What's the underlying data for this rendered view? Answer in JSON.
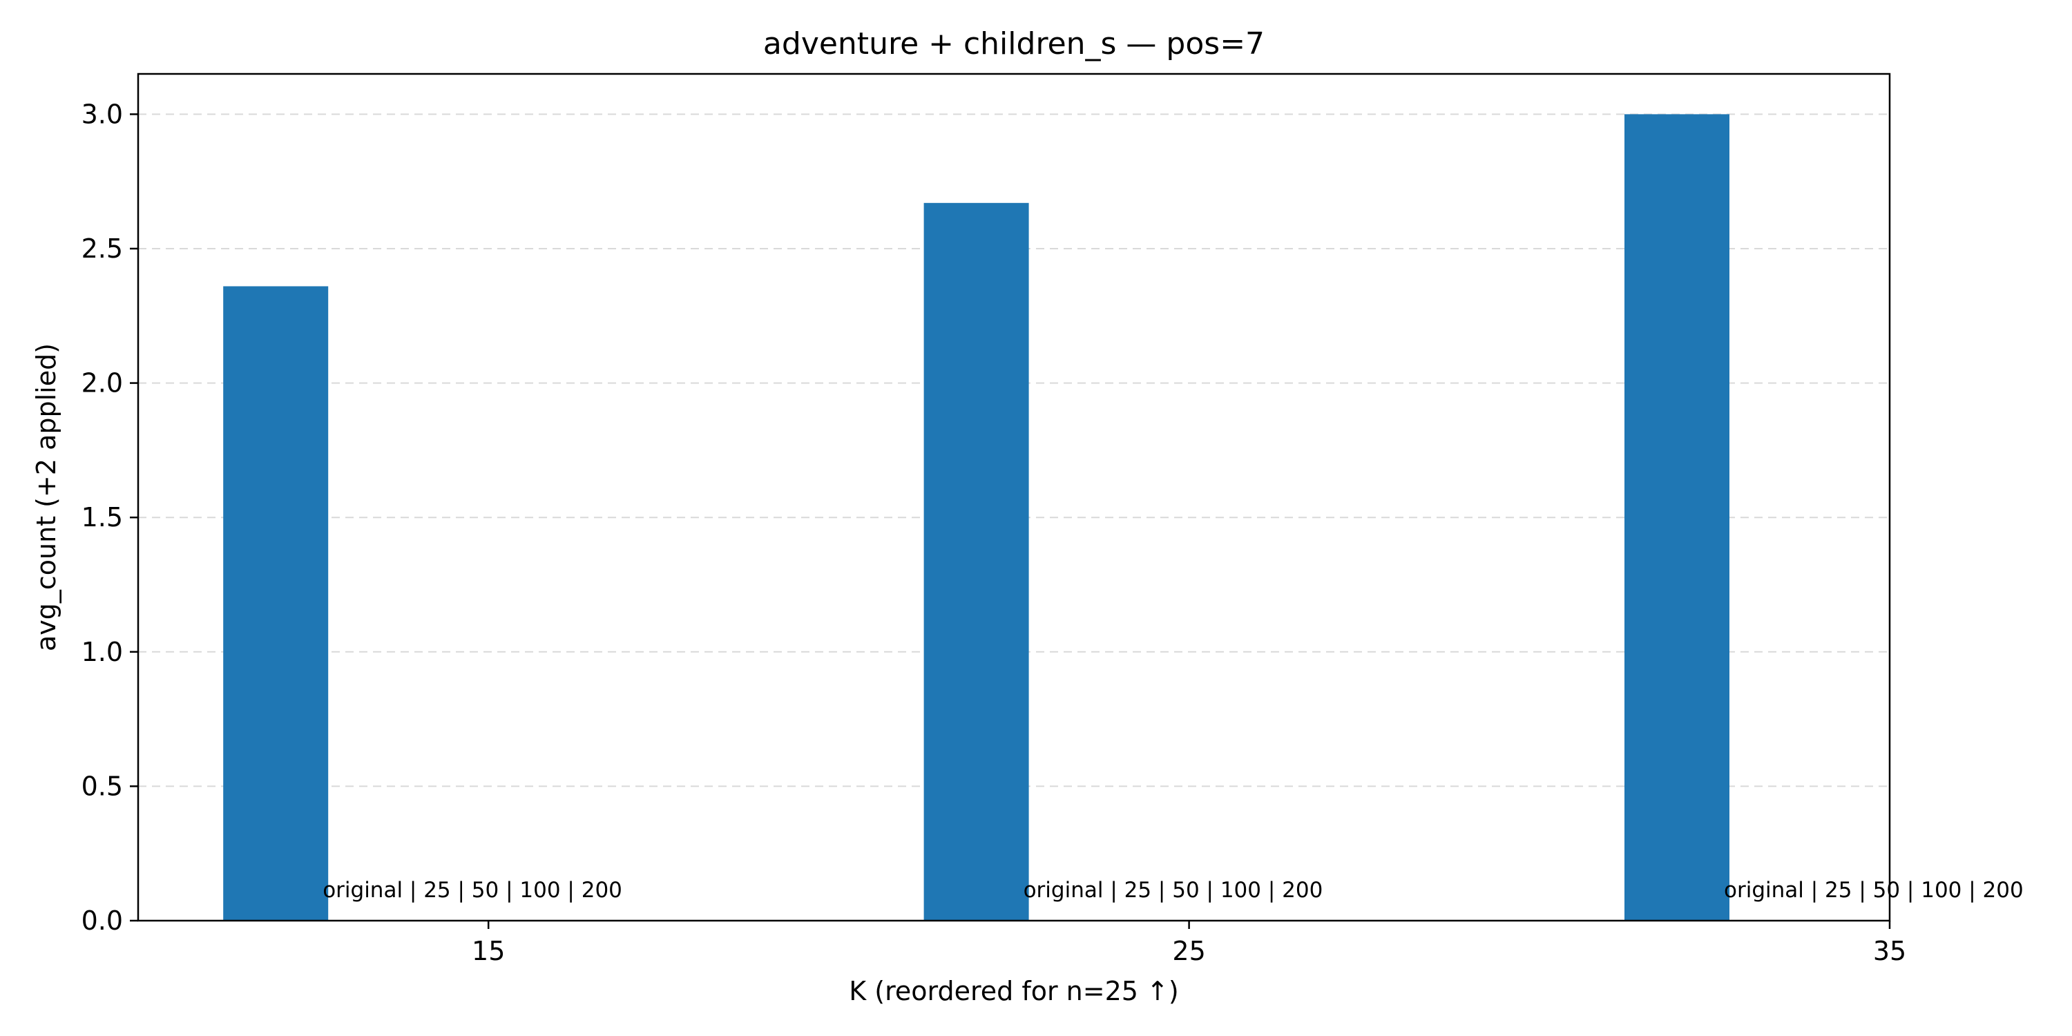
{
  "chart_data": {
    "type": "bar",
    "title": "adventure + children_s — pos=7",
    "xlabel": "K (reordered for n=25 ↑)",
    "ylabel": "avg_count (+2 applied)",
    "x_ticks": [
      "15",
      "25",
      "35"
    ],
    "y_ticks": [
      "0.0",
      "0.5",
      "1.0",
      "1.5",
      "2.0",
      "2.5",
      "3.0"
    ],
    "ylim": [
      0,
      3.15
    ],
    "xlim": [
      10,
      35
    ],
    "grid": "y-dashed",
    "bar_color": "#1f77b4",
    "bars": [
      {
        "x": 15,
        "value": 2.36,
        "label": "original | 25 | 50 | 100 | 200"
      },
      {
        "x": 25,
        "value": 2.67,
        "label": "original | 25 | 50 | 100 | 200"
      },
      {
        "x": 35,
        "value": 3.0,
        "label": "original | 25 | 50 | 100 | 200"
      }
    ]
  }
}
